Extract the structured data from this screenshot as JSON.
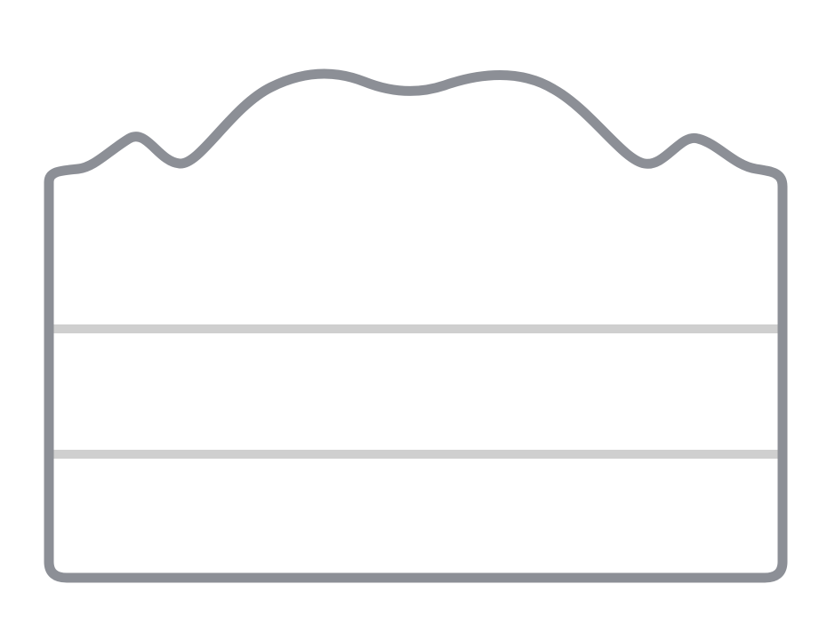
{
  "icon": {
    "name": "layered-cake-icon",
    "outline_color": "#8C8F96",
    "layer_line_color": "#CFCFCF",
    "fill_color": "#FFFFFF",
    "layer_count": 3
  }
}
